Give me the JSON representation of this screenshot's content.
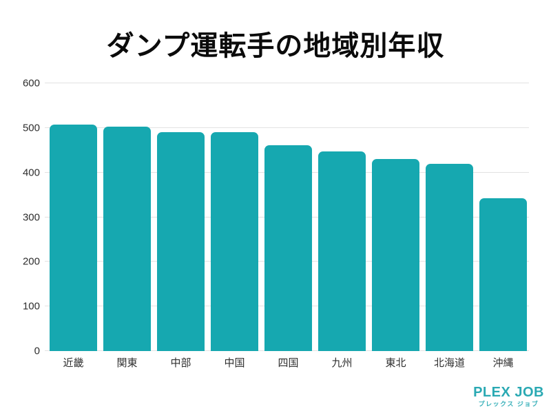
{
  "chart_data": {
    "type": "bar",
    "title": "ダンプ運転手の地域別年収",
    "categories": [
      "近畿",
      "関東",
      "中部",
      "中国",
      "四国",
      "九州",
      "東北",
      "北海道",
      "沖縄"
    ],
    "values": [
      507,
      503,
      491,
      490,
      462,
      448,
      430,
      420,
      343
    ],
    "xlabel": "",
    "ylabel": "",
    "ylim": [
      0,
      600
    ],
    "yticks": [
      0,
      100,
      200,
      300,
      400,
      500,
      600
    ],
    "grid": true,
    "legend": "none",
    "bar_color": "#16a8b0",
    "gridline_color": "#e2e2e2",
    "text_color": "#2e2e2e"
  },
  "footer": {
    "logo_main": "PLEX JOB",
    "logo_sub": "プレックス ジョブ",
    "logo_color": "#2aa9b3"
  }
}
